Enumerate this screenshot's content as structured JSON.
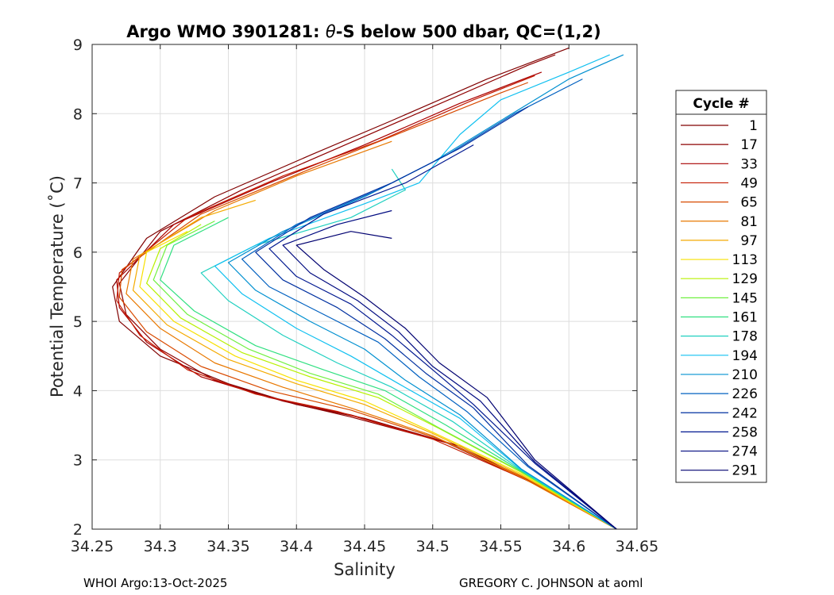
{
  "chart_data": {
    "type": "line",
    "title_prefix": "Argo WMO 3901281: ",
    "title_symbol": "θ",
    "title_suffix": "-S below 500 dbar,  QC=(1,2)",
    "xlabel": "Salinity",
    "ylabel": "Potential Temperature (˚C)",
    "xlim": [
      34.25,
      34.65
    ],
    "ylim": [
      2,
      9
    ],
    "xticks": [
      "34.25",
      "34.3",
      "34.35",
      "34.4",
      "34.45",
      "34.5",
      "34.55",
      "34.6",
      "34.65"
    ],
    "yticks": [
      "2",
      "3",
      "4",
      "5",
      "6",
      "7",
      "8",
      "9"
    ],
    "grid": true,
    "legend_position": "right",
    "legend_title": "Cycle #",
    "legend": [
      {
        "label": "1",
        "color": "#800000"
      },
      {
        "label": "17",
        "color": "#8e0000"
      },
      {
        "label": "33",
        "color": "#a80000"
      },
      {
        "label": "49",
        "color": "#c41a00"
      },
      {
        "label": "65",
        "color": "#d84a00"
      },
      {
        "label": "81",
        "color": "#e87800"
      },
      {
        "label": "97",
        "color": "#f4aa00"
      },
      {
        "label": "113",
        "color": "#f8e000"
      },
      {
        "label": "129",
        "color": "#b8f000"
      },
      {
        "label": "145",
        "color": "#70f040"
      },
      {
        "label": "161",
        "color": "#30e080"
      },
      {
        "label": "178",
        "color": "#20d0c0"
      },
      {
        "label": "194",
        "color": "#10c0f0"
      },
      {
        "label": "210",
        "color": "#0090d0"
      },
      {
        "label": "226",
        "color": "#0060c0"
      },
      {
        "label": "242",
        "color": "#0030a0"
      },
      {
        "label": "258",
        "color": "#001890"
      },
      {
        "label": "274",
        "color": "#000a80"
      },
      {
        "label": "291",
        "color": "#000070"
      }
    ],
    "series": [
      {
        "name": "1",
        "color": "#800000",
        "points": [
          [
            34.635,
            2.0
          ],
          [
            34.58,
            2.6
          ],
          [
            34.52,
            3.2
          ],
          [
            34.45,
            3.6
          ],
          [
            34.4,
            3.8
          ],
          [
            34.35,
            4.1
          ],
          [
            34.3,
            4.5
          ],
          [
            34.27,
            5.0
          ],
          [
            34.265,
            5.5
          ],
          [
            34.29,
            6.2
          ],
          [
            34.34,
            6.8
          ],
          [
            34.41,
            7.4
          ],
          [
            34.47,
            7.9
          ],
          [
            34.54,
            8.5
          ],
          [
            34.6,
            8.95
          ]
        ]
      },
      {
        "name": "17",
        "color": "#8e0000",
        "points": [
          [
            34.635,
            2.0
          ],
          [
            34.575,
            2.65
          ],
          [
            34.51,
            3.25
          ],
          [
            34.44,
            3.62
          ],
          [
            34.39,
            3.85
          ],
          [
            34.34,
            4.15
          ],
          [
            34.3,
            4.6
          ],
          [
            34.275,
            5.1
          ],
          [
            34.27,
            5.55
          ],
          [
            34.3,
            6.3
          ],
          [
            34.36,
            6.9
          ],
          [
            34.43,
            7.5
          ],
          [
            34.5,
            8.1
          ],
          [
            34.57,
            8.7
          ],
          [
            34.59,
            8.85
          ]
        ]
      },
      {
        "name": "33",
        "color": "#a80000",
        "points": [
          [
            34.635,
            2.0
          ],
          [
            34.58,
            2.62
          ],
          [
            34.515,
            3.22
          ],
          [
            34.44,
            3.65
          ],
          [
            34.38,
            3.9
          ],
          [
            34.33,
            4.2
          ],
          [
            34.29,
            4.7
          ],
          [
            34.27,
            5.2
          ],
          [
            34.268,
            5.6
          ],
          [
            34.31,
            6.4
          ],
          [
            34.38,
            7.0
          ],
          [
            34.45,
            7.55
          ],
          [
            34.52,
            8.15
          ],
          [
            34.58,
            8.6
          ]
        ]
      },
      {
        "name": "49",
        "color": "#c41a00",
        "points": [
          [
            34.635,
            2.0
          ],
          [
            34.57,
            2.7
          ],
          [
            34.5,
            3.3
          ],
          [
            34.43,
            3.7
          ],
          [
            34.37,
            3.95
          ],
          [
            34.32,
            4.3
          ],
          [
            34.285,
            4.8
          ],
          [
            34.268,
            5.3
          ],
          [
            34.27,
            5.7
          ],
          [
            34.32,
            6.5
          ],
          [
            34.39,
            7.1
          ],
          [
            34.46,
            7.6
          ],
          [
            34.53,
            8.2
          ],
          [
            34.575,
            8.55
          ]
        ]
      },
      {
        "name": "65",
        "color": "#d84a00",
        "points": [
          [
            34.635,
            2.0
          ],
          [
            34.57,
            2.72
          ],
          [
            34.505,
            3.3
          ],
          [
            34.44,
            3.72
          ],
          [
            34.38,
            4.0
          ],
          [
            34.33,
            4.35
          ],
          [
            34.29,
            4.85
          ],
          [
            34.27,
            5.35
          ],
          [
            34.272,
            5.75
          ],
          [
            34.33,
            6.55
          ],
          [
            34.41,
            7.2
          ],
          [
            34.48,
            7.75
          ],
          [
            34.55,
            8.3
          ],
          [
            34.57,
            8.45
          ]
        ]
      },
      {
        "name": "81",
        "color": "#e87800",
        "points": [
          [
            34.635,
            2.0
          ],
          [
            34.565,
            2.75
          ],
          [
            34.5,
            3.35
          ],
          [
            34.44,
            3.75
          ],
          [
            34.39,
            4.05
          ],
          [
            34.34,
            4.4
          ],
          [
            34.3,
            4.9
          ],
          [
            34.275,
            5.4
          ],
          [
            34.28,
            5.9
          ],
          [
            34.34,
            6.6
          ],
          [
            34.4,
            7.1
          ],
          [
            34.47,
            7.6
          ]
        ]
      },
      {
        "name": "97",
        "color": "#f4aa00",
        "points": [
          [
            34.635,
            2.0
          ],
          [
            34.565,
            2.78
          ],
          [
            34.5,
            3.38
          ],
          [
            34.45,
            3.8
          ],
          [
            34.4,
            4.1
          ],
          [
            34.35,
            4.45
          ],
          [
            34.305,
            4.95
          ],
          [
            34.28,
            5.45
          ],
          [
            34.285,
            5.95
          ],
          [
            34.33,
            6.5
          ],
          [
            34.37,
            6.75
          ]
        ]
      },
      {
        "name": "113",
        "color": "#f8e000",
        "points": [
          [
            34.635,
            2.0
          ],
          [
            34.565,
            2.8
          ],
          [
            34.5,
            3.4
          ],
          [
            34.45,
            3.85
          ],
          [
            34.4,
            4.15
          ],
          [
            34.355,
            4.5
          ],
          [
            34.31,
            5.0
          ],
          [
            34.285,
            5.5
          ],
          [
            34.29,
            6.0
          ],
          [
            34.32,
            6.3
          ]
        ]
      },
      {
        "name": "129",
        "color": "#b8f000",
        "points": [
          [
            34.635,
            2.0
          ],
          [
            34.565,
            2.82
          ],
          [
            34.505,
            3.45
          ],
          [
            34.46,
            3.9
          ],
          [
            34.41,
            4.2
          ],
          [
            34.36,
            4.55
          ],
          [
            34.315,
            5.05
          ],
          [
            34.29,
            5.55
          ],
          [
            34.3,
            6.05
          ],
          [
            34.33,
            6.4
          ]
        ]
      },
      {
        "name": "145",
        "color": "#70f040",
        "points": [
          [
            34.635,
            2.0
          ],
          [
            34.565,
            2.83
          ],
          [
            34.505,
            3.46
          ],
          [
            34.46,
            3.95
          ],
          [
            34.41,
            4.25
          ],
          [
            34.365,
            4.6
          ],
          [
            34.32,
            5.1
          ],
          [
            34.295,
            5.6
          ],
          [
            34.305,
            6.1
          ],
          [
            34.34,
            6.45
          ]
        ]
      },
      {
        "name": "161",
        "color": "#30e080",
        "points": [
          [
            34.635,
            2.0
          ],
          [
            34.565,
            2.84
          ],
          [
            34.51,
            3.5
          ],
          [
            34.465,
            4.0
          ],
          [
            34.42,
            4.3
          ],
          [
            34.37,
            4.65
          ],
          [
            34.325,
            5.15
          ],
          [
            34.3,
            5.6
          ],
          [
            34.31,
            6.1
          ],
          [
            34.35,
            6.5
          ]
        ]
      },
      {
        "name": "178",
        "color": "#20d0c0",
        "points": [
          [
            34.635,
            2.0
          ],
          [
            34.565,
            2.85
          ],
          [
            34.515,
            3.55
          ],
          [
            34.47,
            4.05
          ],
          [
            34.43,
            4.4
          ],
          [
            34.39,
            4.8
          ],
          [
            34.35,
            5.3
          ],
          [
            34.33,
            5.7
          ],
          [
            34.37,
            6.1
          ],
          [
            34.44,
            6.5
          ],
          [
            34.48,
            6.9
          ],
          [
            34.47,
            7.2
          ]
        ]
      },
      {
        "name": "194",
        "color": "#10c0f0",
        "points": [
          [
            34.635,
            2.0
          ],
          [
            34.565,
            2.86
          ],
          [
            34.52,
            3.6
          ],
          [
            34.475,
            4.1
          ],
          [
            34.44,
            4.5
          ],
          [
            34.4,
            4.9
          ],
          [
            34.36,
            5.4
          ],
          [
            34.34,
            5.8
          ],
          [
            34.38,
            6.2
          ],
          [
            34.45,
            6.7
          ],
          [
            34.49,
            7.0
          ],
          [
            34.52,
            7.7
          ],
          [
            34.55,
            8.2
          ],
          [
            34.6,
            8.6
          ],
          [
            34.63,
            8.85
          ]
        ]
      },
      {
        "name": "210",
        "color": "#0090d0",
        "points": [
          [
            34.635,
            2.0
          ],
          [
            34.565,
            2.87
          ],
          [
            34.52,
            3.65
          ],
          [
            34.48,
            4.15
          ],
          [
            34.45,
            4.6
          ],
          [
            34.41,
            5.0
          ],
          [
            34.37,
            5.45
          ],
          [
            34.35,
            5.85
          ],
          [
            34.39,
            6.3
          ],
          [
            34.45,
            6.8
          ],
          [
            34.5,
            7.3
          ],
          [
            34.55,
            7.9
          ],
          [
            34.6,
            8.5
          ],
          [
            34.64,
            8.85
          ]
        ]
      },
      {
        "name": "226",
        "color": "#0060c0",
        "points": [
          [
            34.635,
            2.0
          ],
          [
            34.57,
            2.9
          ],
          [
            34.525,
            3.7
          ],
          [
            34.49,
            4.2
          ],
          [
            34.46,
            4.7
          ],
          [
            34.42,
            5.1
          ],
          [
            34.38,
            5.5
          ],
          [
            34.36,
            5.9
          ],
          [
            34.4,
            6.4
          ],
          [
            34.46,
            6.9
          ],
          [
            34.51,
            7.4
          ],
          [
            34.56,
            8.0
          ],
          [
            34.61,
            8.5
          ]
        ]
      },
      {
        "name": "242",
        "color": "#0030a0",
        "points": [
          [
            34.635,
            2.0
          ],
          [
            34.57,
            2.92
          ],
          [
            34.53,
            3.75
          ],
          [
            34.495,
            4.25
          ],
          [
            34.465,
            4.75
          ],
          [
            34.43,
            5.2
          ],
          [
            34.39,
            5.6
          ],
          [
            34.37,
            6.0
          ],
          [
            34.41,
            6.5
          ],
          [
            34.47,
            7.0
          ],
          [
            34.52,
            7.5
          ],
          [
            34.57,
            8.1
          ]
        ]
      },
      {
        "name": "258",
        "color": "#001890",
        "points": [
          [
            34.635,
            2.0
          ],
          [
            34.575,
            2.95
          ],
          [
            34.53,
            3.8
          ],
          [
            34.5,
            4.3
          ],
          [
            34.47,
            4.8
          ],
          [
            34.44,
            5.25
          ],
          [
            34.4,
            5.65
          ],
          [
            34.38,
            6.05
          ],
          [
            34.42,
            6.55
          ],
          [
            34.48,
            7.0
          ],
          [
            34.53,
            7.55
          ]
        ]
      },
      {
        "name": "274",
        "color": "#000a80",
        "points": [
          [
            34.635,
            2.0
          ],
          [
            34.575,
            2.97
          ],
          [
            34.535,
            3.85
          ],
          [
            34.5,
            4.35
          ],
          [
            34.475,
            4.85
          ],
          [
            34.445,
            5.3
          ],
          [
            34.41,
            5.7
          ],
          [
            34.39,
            6.1
          ],
          [
            34.43,
            6.4
          ],
          [
            34.47,
            6.6
          ]
        ]
      },
      {
        "name": "291",
        "color": "#000070",
        "points": [
          [
            34.635,
            2.0
          ],
          [
            34.575,
            3.0
          ],
          [
            34.54,
            3.9
          ],
          [
            34.505,
            4.4
          ],
          [
            34.48,
            4.9
          ],
          [
            34.45,
            5.35
          ],
          [
            34.42,
            5.75
          ],
          [
            34.4,
            6.1
          ],
          [
            34.44,
            6.3
          ],
          [
            34.47,
            6.2
          ]
        ]
      }
    ]
  },
  "footer": {
    "left": "WHOI Argo:13-Oct-2025",
    "right": "GREGORY C. JOHNSON at aoml"
  }
}
